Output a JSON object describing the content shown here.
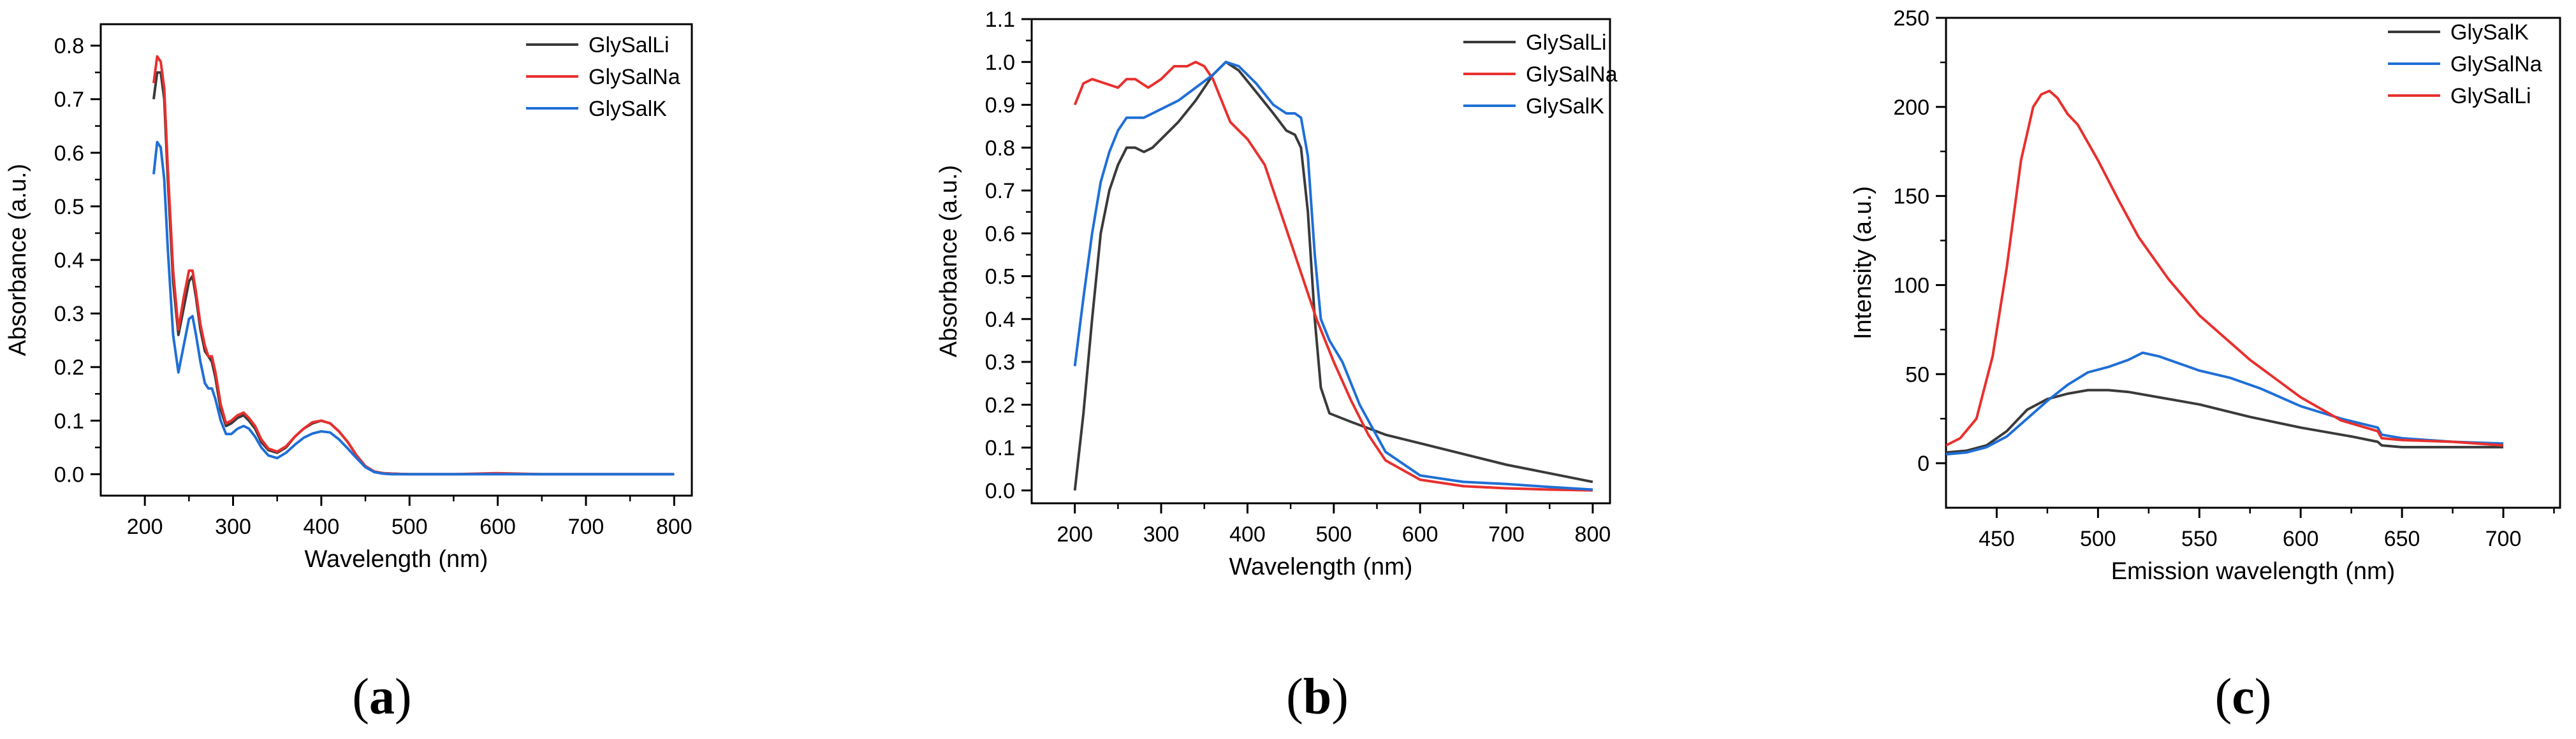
{
  "figure": {
    "panels": [
      "(a)",
      "(b)",
      "(c)"
    ],
    "panel_letters": [
      "a",
      "b",
      "c"
    ]
  },
  "chart_data": [
    {
      "type": "line",
      "panel": "a",
      "xlabel": "Wavelength (nm)",
      "ylabel": "Absorbance (a.u.)",
      "xlim": [
        150,
        820
      ],
      "ylim": [
        -0.04,
        0.84
      ],
      "xticks": [
        200,
        300,
        400,
        500,
        600,
        700,
        800
      ],
      "yticks": [
        0.0,
        0.1,
        0.2,
        0.3,
        0.4,
        0.5,
        0.6,
        0.7,
        0.8
      ],
      "ytick_labels": [
        "0.0",
        "0.1",
        "0.2",
        "0.3",
        "0.4",
        "0.5",
        "0.6",
        "0.7",
        "0.8"
      ],
      "legend": {
        "placement": "top-right"
      },
      "series": [
        {
          "name": "GlySalLi",
          "color": "#3a3a3a",
          "x": [
            210,
            214,
            218,
            222,
            226,
            232,
            238,
            244,
            250,
            254,
            258,
            263,
            268,
            272,
            276,
            280,
            286,
            292,
            298,
            305,
            312,
            318,
            325,
            332,
            340,
            350,
            360,
            370,
            380,
            390,
            400,
            410,
            420,
            430,
            440,
            450,
            460,
            470,
            480,
            500,
            550,
            600,
            650,
            700,
            750,
            800
          ],
          "y": [
            0.7,
            0.75,
            0.75,
            0.7,
            0.55,
            0.36,
            0.26,
            0.31,
            0.36,
            0.37,
            0.33,
            0.27,
            0.23,
            0.22,
            0.21,
            0.18,
            0.12,
            0.09,
            0.095,
            0.105,
            0.11,
            0.1,
            0.085,
            0.06,
            0.045,
            0.04,
            0.05,
            0.07,
            0.085,
            0.095,
            0.1,
            0.095,
            0.08,
            0.06,
            0.035,
            0.015,
            0.005,
            0.002,
            0.001,
            0.0,
            0.0,
            0.001,
            0.0,
            0.0,
            0.0,
            0.0
          ]
        },
        {
          "name": "GlySalNa",
          "color": "#e8302e",
          "x": [
            210,
            214,
            218,
            222,
            226,
            232,
            238,
            244,
            250,
            254,
            258,
            263,
            268,
            272,
            276,
            280,
            286,
            292,
            298,
            305,
            312,
            318,
            325,
            332,
            340,
            350,
            360,
            370,
            380,
            390,
            400,
            410,
            420,
            430,
            440,
            450,
            460,
            470,
            480,
            500,
            550,
            600,
            650,
            700,
            750,
            800
          ],
          "y": [
            0.73,
            0.78,
            0.77,
            0.72,
            0.57,
            0.38,
            0.27,
            0.33,
            0.38,
            0.38,
            0.34,
            0.28,
            0.24,
            0.22,
            0.22,
            0.19,
            0.13,
            0.095,
            0.1,
            0.11,
            0.115,
            0.105,
            0.09,
            0.065,
            0.048,
            0.042,
            0.052,
            0.07,
            0.085,
            0.097,
            0.1,
            0.095,
            0.08,
            0.06,
            0.035,
            0.015,
            0.005,
            0.002,
            0.001,
            0.0,
            0.0,
            0.002,
            0.0,
            0.0,
            0.0,
            0.0
          ]
        },
        {
          "name": "GlySalK",
          "color": "#1f6fd6",
          "x": [
            210,
            214,
            218,
            222,
            226,
            232,
            238,
            244,
            250,
            254,
            258,
            263,
            268,
            272,
            276,
            280,
            286,
            292,
            298,
            305,
            312,
            318,
            325,
            332,
            340,
            350,
            360,
            370,
            380,
            390,
            400,
            410,
            420,
            430,
            440,
            450,
            460,
            470,
            480,
            500,
            550,
            600,
            650,
            700,
            750,
            800
          ],
          "y": [
            0.56,
            0.62,
            0.61,
            0.55,
            0.42,
            0.26,
            0.19,
            0.24,
            0.29,
            0.295,
            0.26,
            0.21,
            0.17,
            0.16,
            0.16,
            0.14,
            0.1,
            0.075,
            0.075,
            0.085,
            0.09,
            0.085,
            0.07,
            0.05,
            0.035,
            0.03,
            0.04,
            0.055,
            0.068,
            0.076,
            0.08,
            0.078,
            0.065,
            0.048,
            0.03,
            0.013,
            0.004,
            0.001,
            0.0,
            0.0,
            0.0,
            0.0,
            0.0,
            0.0,
            0.0,
            0.0
          ]
        }
      ]
    },
    {
      "type": "line",
      "panel": "b",
      "xlabel": "Wavelength (nm)",
      "ylabel": "Absorbance (a.u.)",
      "xlim": [
        150,
        820
      ],
      "ylim": [
        -0.03,
        1.1
      ],
      "xticks": [
        200,
        300,
        400,
        500,
        600,
        700,
        800
      ],
      "yticks": [
        0.0,
        0.1,
        0.2,
        0.3,
        0.4,
        0.5,
        0.6,
        0.7,
        0.8,
        0.9,
        1.0,
        1.1
      ],
      "ytick_labels": [
        "0.0",
        "0.1",
        "0.2",
        "0.3",
        "0.4",
        "0.5",
        "0.6",
        "0.7",
        "0.8",
        "0.9",
        "1.0",
        "1.1"
      ],
      "legend": {
        "placement": "top-right"
      },
      "series": [
        {
          "name": "GlySalLi",
          "color": "#3a3a3a",
          "x": [
            200,
            210,
            220,
            230,
            240,
            250,
            260,
            270,
            280,
            290,
            300,
            320,
            340,
            360,
            375,
            390,
            410,
            430,
            445,
            455,
            462,
            470,
            478,
            485,
            495,
            520,
            560,
            600,
            650,
            700,
            750,
            800
          ],
          "y": [
            0.0,
            0.18,
            0.4,
            0.6,
            0.7,
            0.76,
            0.8,
            0.8,
            0.79,
            0.8,
            0.82,
            0.86,
            0.91,
            0.97,
            1.0,
            0.98,
            0.93,
            0.88,
            0.84,
            0.83,
            0.8,
            0.65,
            0.4,
            0.24,
            0.18,
            0.16,
            0.13,
            0.11,
            0.085,
            0.06,
            0.04,
            0.02
          ]
        },
        {
          "name": "GlySalNa",
          "color": "#e8302e",
          "x": [
            200,
            210,
            220,
            235,
            250,
            260,
            270,
            285,
            300,
            315,
            330,
            340,
            350,
            360,
            370,
            380,
            390,
            400,
            420,
            440,
            460,
            480,
            500,
            520,
            540,
            560,
            600,
            650,
            700,
            750,
            800
          ],
          "y": [
            0.9,
            0.95,
            0.96,
            0.95,
            0.94,
            0.96,
            0.96,
            0.94,
            0.96,
            0.99,
            0.99,
            1.0,
            0.99,
            0.96,
            0.91,
            0.86,
            0.84,
            0.82,
            0.76,
            0.64,
            0.52,
            0.4,
            0.3,
            0.21,
            0.13,
            0.07,
            0.025,
            0.01,
            0.005,
            0.002,
            0.0
          ]
        },
        {
          "name": "GlySalK",
          "color": "#1f6fd6",
          "x": [
            200,
            210,
            220,
            230,
            240,
            250,
            260,
            270,
            280,
            290,
            300,
            320,
            340,
            360,
            375,
            390,
            410,
            430,
            445,
            455,
            462,
            470,
            478,
            485,
            495,
            510,
            530,
            560,
            600,
            650,
            700,
            750,
            800
          ],
          "y": [
            0.29,
            0.45,
            0.6,
            0.72,
            0.79,
            0.84,
            0.87,
            0.87,
            0.87,
            0.88,
            0.89,
            0.91,
            0.94,
            0.97,
            1.0,
            0.99,
            0.95,
            0.9,
            0.88,
            0.88,
            0.87,
            0.78,
            0.55,
            0.4,
            0.35,
            0.3,
            0.2,
            0.09,
            0.035,
            0.02,
            0.015,
            0.008,
            0.002
          ]
        }
      ]
    },
    {
      "type": "line",
      "panel": "c",
      "xlabel": "Emission wavelength (nm)",
      "ylabel": "Intensity (a.u.)",
      "xlim": [
        425,
        728
      ],
      "ylim": [
        -25,
        250
      ],
      "xticks": [
        450,
        500,
        550,
        600,
        650,
        700
      ],
      "yticks": [
        0,
        50,
        100,
        150,
        200,
        250
      ],
      "ytick_labels": [
        "0",
        "50",
        "100",
        "150",
        "200",
        "250"
      ],
      "legend": {
        "placement": "top-right"
      },
      "series": [
        {
          "name": "GlySalK",
          "color": "#3a3a3a",
          "x": [
            425,
            435,
            445,
            455,
            465,
            475,
            485,
            495,
            505,
            515,
            530,
            550,
            575,
            600,
            625,
            638,
            640,
            650,
            675,
            700
          ],
          "y": [
            6,
            7,
            10,
            18,
            30,
            36,
            39,
            41,
            41,
            40,
            37,
            33,
            26,
            20,
            15,
            12,
            10,
            9,
            9,
            9
          ]
        },
        {
          "name": "GlySalNa",
          "color": "#1f6fd6",
          "x": [
            425,
            435,
            445,
            455,
            465,
            475,
            485,
            495,
            505,
            515,
            522,
            530,
            540,
            550,
            565,
            580,
            600,
            620,
            638,
            640,
            650,
            675,
            700
          ],
          "y": [
            5,
            6,
            9,
            15,
            25,
            35,
            44,
            51,
            54,
            58,
            62,
            60,
            56,
            52,
            48,
            42,
            32,
            25,
            20,
            16,
            14,
            12,
            11
          ]
        },
        {
          "name": "GlySalLi",
          "color": "#e8302e",
          "x": [
            425,
            432,
            440,
            448,
            455,
            462,
            468,
            472,
            476,
            480,
            485,
            490,
            500,
            510,
            520,
            535,
            550,
            575,
            600,
            620,
            638,
            640,
            650,
            675,
            700
          ],
          "y": [
            10,
            14,
            25,
            60,
            110,
            170,
            200,
            207,
            209,
            205,
            196,
            190,
            170,
            148,
            127,
            103,
            83,
            58,
            37,
            24,
            18,
            14,
            13,
            12,
            10
          ]
        }
      ]
    }
  ]
}
